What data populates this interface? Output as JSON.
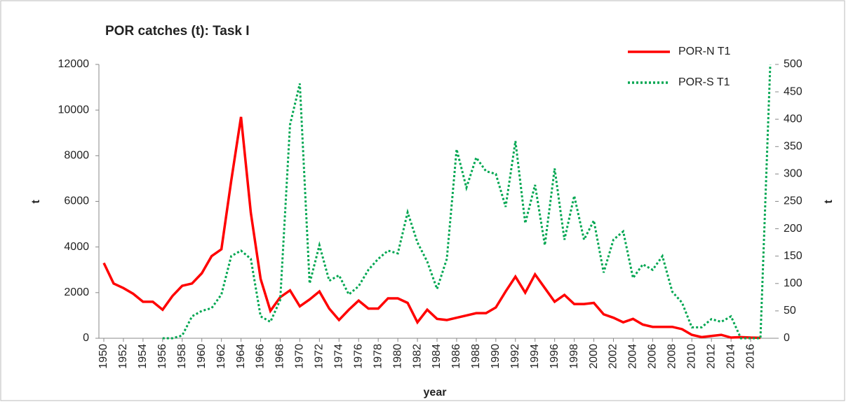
{
  "chart_data": {
    "type": "line",
    "title": "POR catches (t): Task I",
    "xlabel": "year",
    "ylabel": "t",
    "y2label": "t",
    "x": [
      1950,
      1951,
      1952,
      1953,
      1954,
      1955,
      1956,
      1957,
      1958,
      1959,
      1960,
      1961,
      1962,
      1963,
      1964,
      1965,
      1966,
      1967,
      1968,
      1969,
      1970,
      1971,
      1972,
      1973,
      1974,
      1975,
      1976,
      1977,
      1978,
      1979,
      1980,
      1981,
      1982,
      1983,
      1984,
      1985,
      1986,
      1987,
      1988,
      1989,
      1990,
      1991,
      1992,
      1993,
      1994,
      1995,
      1996,
      1997,
      1998,
      1999,
      2000,
      2001,
      2002,
      2003,
      2004,
      2005,
      2006,
      2007,
      2008,
      2009,
      2010,
      2011,
      2012,
      2013,
      2014,
      2015,
      2016,
      2017,
      2018
    ],
    "xlim": [
      1949.5,
      2018.5
    ],
    "xticks": [
      1950,
      1952,
      1954,
      1956,
      1958,
      1960,
      1962,
      1964,
      1966,
      1968,
      1970,
      1972,
      1974,
      1976,
      1978,
      1980,
      1982,
      1984,
      1986,
      1988,
      1990,
      1992,
      1994,
      1996,
      1998,
      2000,
      2002,
      2004,
      2006,
      2008,
      2010,
      2012,
      2014,
      2016
    ],
    "ylim": [
      0,
      12000
    ],
    "yticks": [
      0,
      2000,
      4000,
      6000,
      8000,
      10000,
      12000
    ],
    "y2lim": [
      0,
      500
    ],
    "y2ticks": [
      0,
      50,
      100,
      150,
      200,
      250,
      300,
      350,
      400,
      450,
      500
    ],
    "legend": "top-right",
    "series": [
      {
        "name": "POR-N T1",
        "color": "#ff0000",
        "style": "solid",
        "axis": "y",
        "values": [
          3300,
          2400,
          2200,
          1950,
          1600,
          1600,
          1250,
          1850,
          2300,
          2400,
          2850,
          3600,
          3900,
          6900,
          9700,
          5500,
          2600,
          1200,
          1800,
          2100,
          1400,
          1700,
          2050,
          1300,
          800,
          1250,
          1650,
          1300,
          1300,
          1750,
          1750,
          1550,
          700,
          1250,
          850,
          800,
          900,
          1000,
          1100,
          1100,
          1350,
          2050,
          2700,
          2000,
          2800,
          2200,
          1600,
          1900,
          1500,
          1500,
          1550,
          1050,
          900,
          700,
          850,
          600,
          500,
          500,
          500,
          400,
          150,
          50,
          100,
          150,
          30,
          50,
          30,
          20,
          null
        ]
      },
      {
        "name": "POR-S T1",
        "color": "#00a651",
        "style": "dotted",
        "axis": "y2",
        "values": [
          null,
          null,
          null,
          null,
          null,
          null,
          0,
          0,
          5,
          40,
          50,
          55,
          80,
          150,
          160,
          145,
          40,
          30,
          70,
          390,
          465,
          100,
          170,
          105,
          115,
          80,
          95,
          125,
          145,
          160,
          155,
          230,
          175,
          140,
          90,
          145,
          345,
          275,
          330,
          305,
          300,
          240,
          360,
          210,
          280,
          170,
          310,
          180,
          260,
          180,
          215,
          120,
          180,
          195,
          110,
          135,
          125,
          150,
          85,
          65,
          20,
          20,
          35,
          30,
          40,
          0,
          0,
          0,
          500
        ]
      }
    ]
  }
}
